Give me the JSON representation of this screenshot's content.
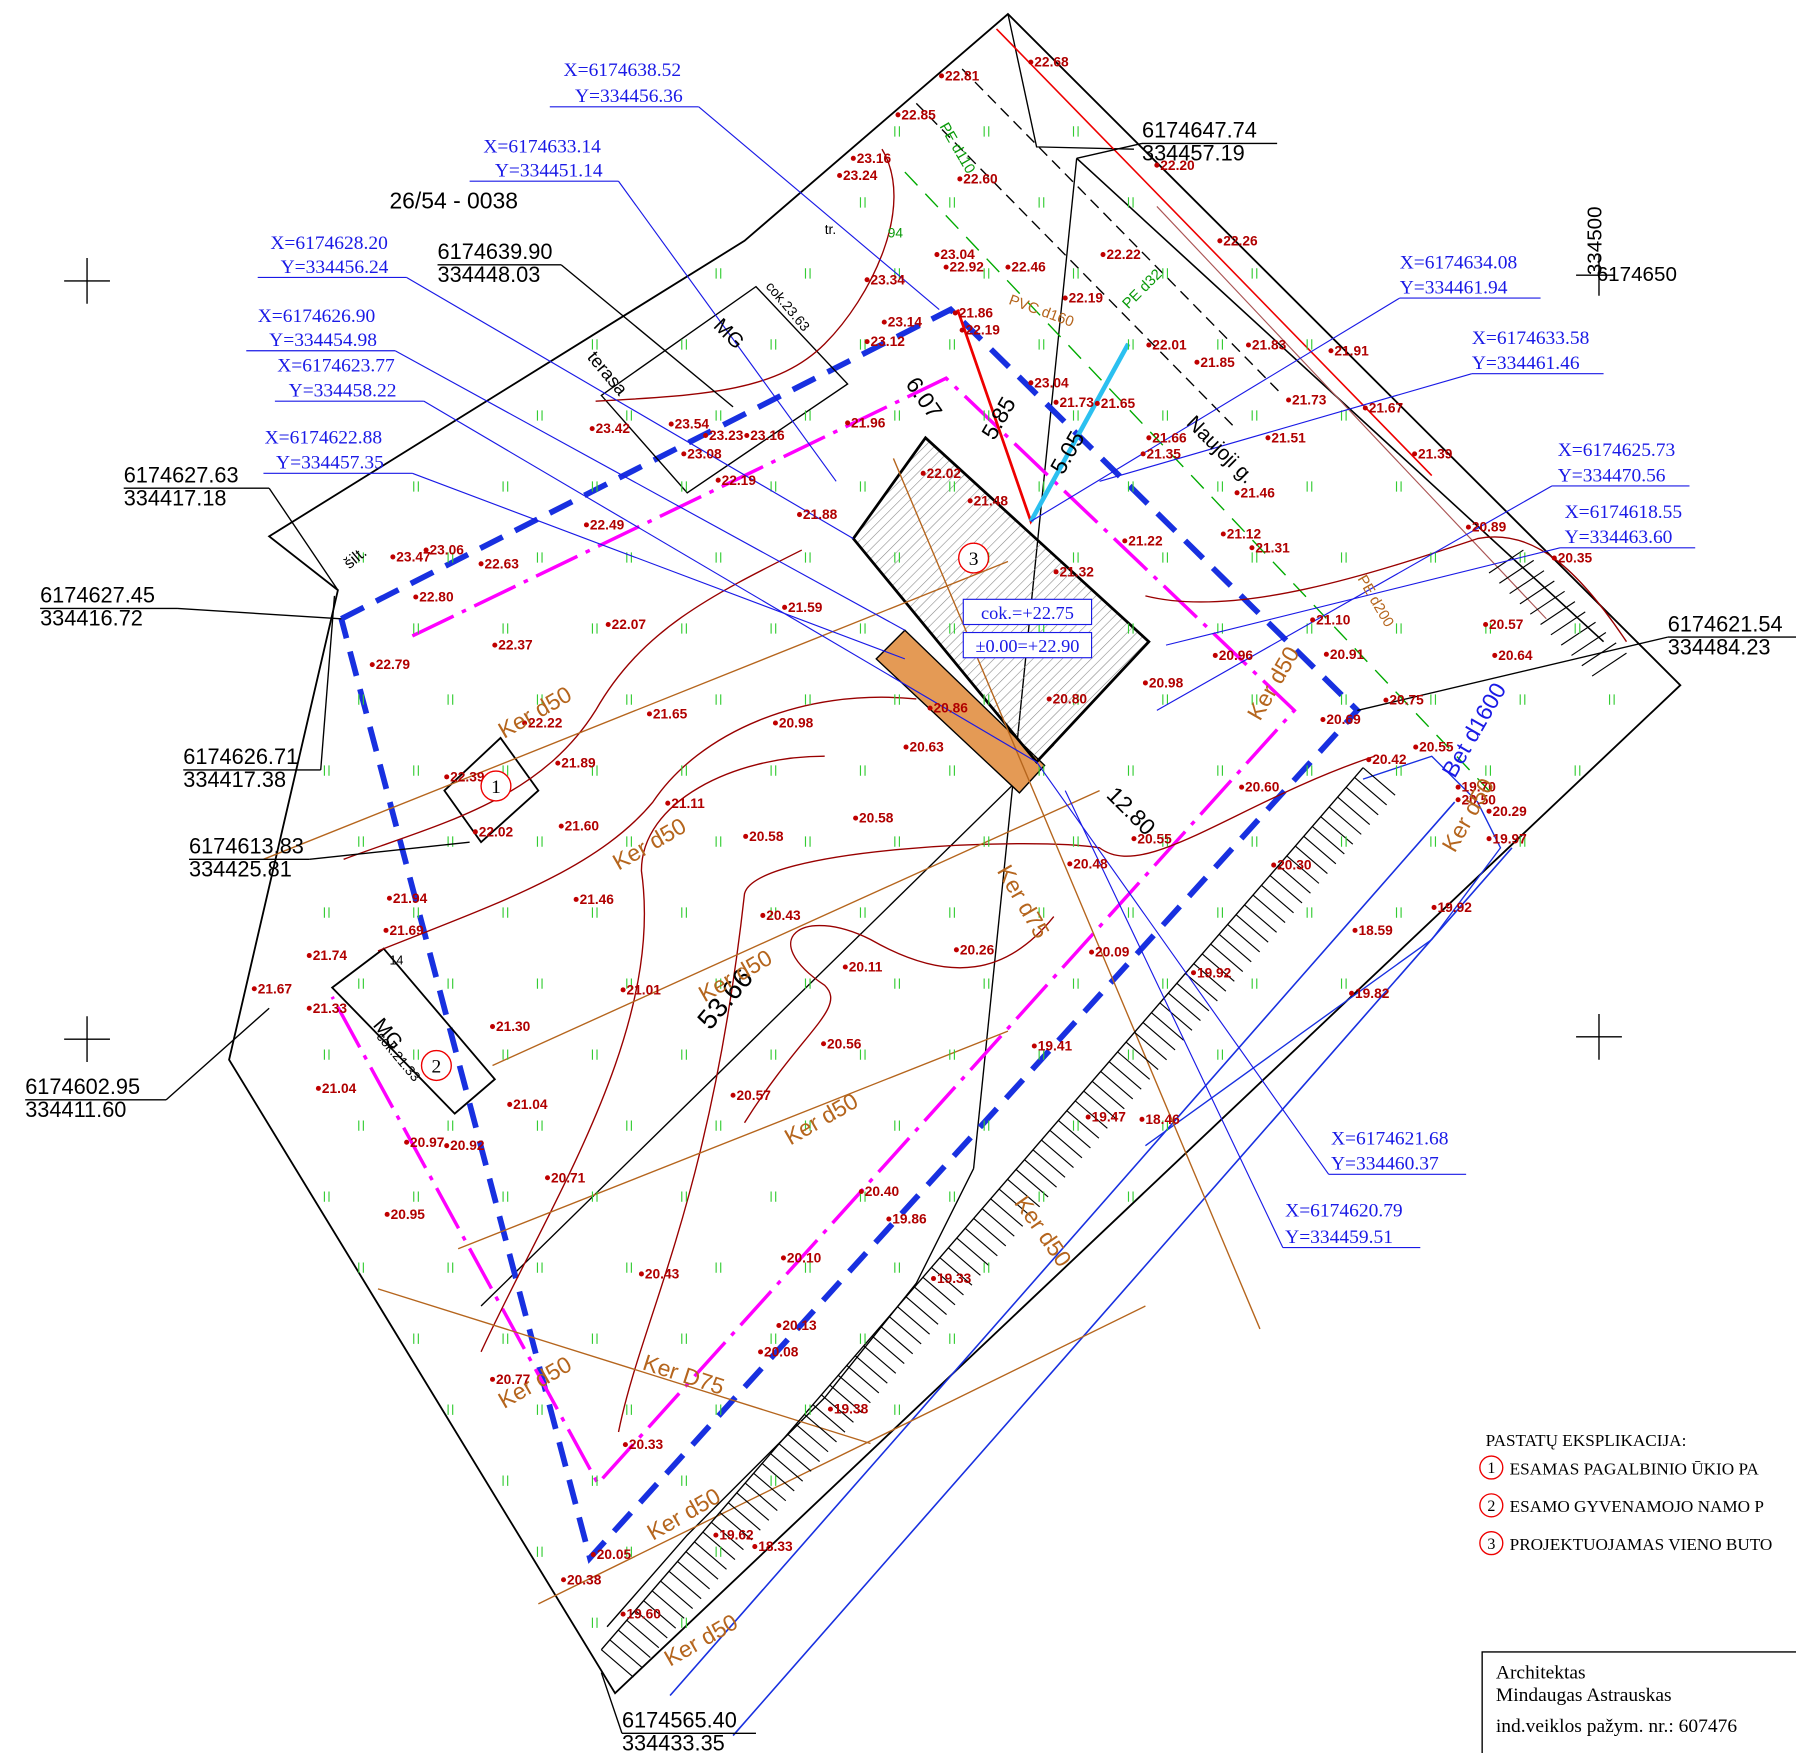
{
  "parcel_number": "26/54 - 0038",
  "grid_labels": [
    "334500",
    "6174650"
  ],
  "boundary_points": [
    {
      "x": "6174647.74",
      "y": "334457.19"
    },
    {
      "x": "6174639.90",
      "y": "334448.03"
    },
    {
      "x": "6174627.63",
      "y": "334417.18"
    },
    {
      "x": "6174627.45",
      "y": "334416.72"
    },
    {
      "x": "6174626.71",
      "y": "334417.38"
    },
    {
      "x": "6174613.83",
      "y": "334425.81"
    },
    {
      "x": "6174602.95",
      "y": "334411.60"
    },
    {
      "x": "6174565.40",
      "y": "334433.35"
    },
    {
      "x": "6174621.54",
      "y": "334484.23"
    }
  ],
  "design_points": [
    {
      "x": "X=6174638.52",
      "y": "Y=334456.36"
    },
    {
      "x": "X=6174633.14",
      "y": "Y=334451.14"
    },
    {
      "x": "X=6174628.20",
      "y": "Y=334456.24"
    },
    {
      "x": "X=6174626.90",
      "y": "Y=334454.98"
    },
    {
      "x": "X=6174623.77",
      "y": "Y=334458.22"
    },
    {
      "x": "X=6174622.88",
      "y": "Y=334457.35"
    },
    {
      "x": "X=6174634.08",
      "y": "Y=334461.94"
    },
    {
      "x": "X=6174633.58",
      "y": "Y=334461.46"
    },
    {
      "x": "X=6174625.73",
      "y": "Y=334470.56"
    },
    {
      "x": "X=6174618.55",
      "y": "Y=334463.60"
    },
    {
      "x": "X=6174621.68",
      "y": "Y=334460.37"
    },
    {
      "x": "X=6174620.79",
      "y": "Y=334459.51"
    }
  ],
  "elevations": [
    "22.68",
    "22.81",
    "22.85",
    "23.16",
    "23.24",
    "22.60",
    "22.20",
    "23.04",
    "22.92",
    "22.46",
    "23.34",
    "22.22",
    "22.26",
    "22.19",
    "21.86",
    "23.14",
    "23.12",
    "22.19",
    "22.01",
    "21.85",
    "21.83",
    "21.91",
    "23.04",
    "21.73",
    "21.65",
    "21.73",
    "21.67",
    "21.51",
    "21.66",
    "21.35",
    "21.39",
    "23.42",
    "23.54",
    "23.23",
    "23.16",
    "23.08",
    "21.96",
    "22.02",
    "22.19",
    "21.48",
    "21.46",
    "21.88",
    "22.49",
    "23.47",
    "23.06",
    "22.63",
    "22.80",
    "21.22",
    "21.12",
    "21.31",
    "21.32",
    "20.89",
    "20.35",
    "21.59",
    "22.07",
    "22.37",
    "21.10",
    "20.96",
    "20.91",
    "20.98",
    "20.80",
    "22.79",
    "21.65",
    "20.98",
    "20.86",
    "20.63",
    "20.75",
    "20.69",
    "20.57",
    "20.64",
    "22.22",
    "21.89",
    "22.39",
    "20.42",
    "20.55",
    "20.60",
    "19.70",
    "20.50",
    "20.29",
    "19.97",
    "21.11",
    "20.58",
    "20.58",
    "22.02",
    "21.60",
    "20.55",
    "20.48",
    "20.30",
    "21.46",
    "20.43",
    "19.92",
    "21.94",
    "21.69",
    "20.26",
    "20.11",
    "21.74",
    "20.09",
    "19.92",
    "18.59",
    "21.01",
    "21.67",
    "21.33",
    "19.82",
    "21.30",
    "20.56",
    "19.41",
    "21.04",
    "21.04",
    "20.57",
    "19.47",
    "18.46",
    "20.97",
    "20.92",
    "20.71",
    "20.40",
    "20.95",
    "19.86",
    "20.10",
    "20.43",
    "19.33",
    "20.13",
    "20.08",
    "20.77",
    "19.38",
    "20.33",
    "19.62",
    "18.33",
    "20.05",
    "20.38",
    "19.60"
  ],
  "dimensions": [
    "6.07",
    "5.85",
    "5.05",
    "12.80",
    "53.66"
  ],
  "building_markers": [
    "3",
    "1",
    "2"
  ],
  "building_levels": [
    "cok.=+22.75",
    "±0.00=+22.90"
  ],
  "annotations": [
    "Ker d50",
    "Ker d50",
    "Ker d50",
    "Ker d50",
    "Ker d50",
    "Ker D75",
    "Ker d75",
    "Ker d50",
    "Ker d50",
    "Ker d50",
    "Ker d50",
    "Ker d50",
    "Bet d1600",
    "Naujoji g.",
    "PE d32",
    "PE d110",
    "PE d200",
    "PVC d160",
    "MG",
    "MG",
    "cok.23.63",
    "cok.21.33",
    "terasa",
    "šilt.",
    "tr.",
    "94",
    "14"
  ],
  "legend": {
    "title": "PASTATŲ EKSPLIKACIJA:",
    "items": [
      {
        "number": "1",
        "text": "ESAMAS PAGALBINIO ŪKIO PA"
      },
      {
        "number": "2",
        "text": "ESAMO GYVENAMOJO NAMO P"
      },
      {
        "number": "3",
        "text": "PROJEKTUOJAMAS VIENO BUTO"
      }
    ]
  },
  "architect": {
    "role": "Architektas",
    "name": "Mindaugas Astrauskas",
    "license": "ind.veiklos pažym. nr.: 607476"
  }
}
